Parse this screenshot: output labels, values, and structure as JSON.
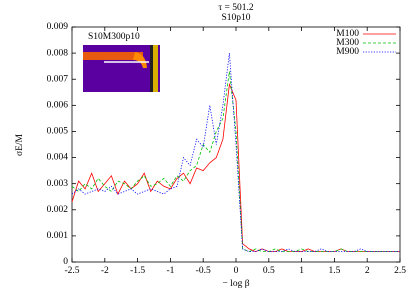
{
  "chart_data": {
    "type": "line",
    "title": "τ = 501.2",
    "subtitle": "S10p10",
    "x_label": "− log β",
    "y_label": "σE/M",
    "inset_title": "S10M300p10",
    "legend": "top-right",
    "x": [
      -2.5,
      -2.4,
      -2.3,
      -2.2,
      -2.1,
      -2.0,
      -1.9,
      -1.8,
      -1.7,
      -1.6,
      -1.5,
      -1.4,
      -1.3,
      -1.2,
      -1.1,
      -1.0,
      -0.9,
      -0.8,
      -0.7,
      -0.6,
      -0.5,
      -0.4,
      -0.3,
      -0.2,
      -0.1,
      0.0,
      0.1,
      0.2,
      0.3,
      0.4,
      0.5,
      0.6,
      0.7,
      0.8,
      0.9,
      1.0,
      1.1,
      1.2,
      1.3,
      1.4,
      1.5,
      1.6,
      1.7,
      1.8,
      1.9,
      2.0,
      2.1,
      2.2,
      2.3,
      2.4,
      2.5
    ],
    "series": [
      {
        "name": "M100",
        "color": "#ff0000",
        "dash": "solid",
        "values": [
          0.0023,
          0.0031,
          0.0028,
          0.0034,
          0.0027,
          0.003,
          0.0033,
          0.0026,
          0.0031,
          0.0028,
          0.003,
          0.0034,
          0.0027,
          0.0031,
          0.0029,
          0.0028,
          0.0032,
          0.0034,
          0.003,
          0.0036,
          0.0035,
          0.0038,
          0.004,
          0.0047,
          0.0068,
          0.0062,
          0.0007,
          0.0005,
          0.0004,
          0.0005,
          0.0004,
          0.0004,
          0.0005,
          0.0004,
          0.0004,
          0.0004,
          0.0005,
          0.0004,
          0.0004,
          0.0004,
          0.0004,
          0.0005,
          0.0004,
          0.0004,
          0.0004,
          0.0004,
          0.0004,
          0.0004,
          0.0004,
          0.0004,
          0.0004
        ]
      },
      {
        "name": "M300",
        "color": "#00c000",
        "dash": "dashed",
        "values": [
          0.0029,
          0.0027,
          0.003,
          0.0028,
          0.0032,
          0.0029,
          0.0027,
          0.0031,
          0.003,
          0.0028,
          0.0031,
          0.0033,
          0.0029,
          0.003,
          0.0032,
          0.0029,
          0.0033,
          0.0031,
          0.0035,
          0.0037,
          0.0045,
          0.0042,
          0.005,
          0.0055,
          0.0073,
          0.005,
          0.0005,
          0.0004,
          0.0005,
          0.0004,
          0.0004,
          0.0005,
          0.0004,
          0.0004,
          0.0004,
          0.0005,
          0.0004,
          0.0004,
          0.0004,
          0.0004,
          0.0004,
          0.0005,
          0.0004,
          0.0004,
          0.0004,
          0.0004,
          0.0004,
          0.0004,
          0.0004,
          0.0004,
          0.0004
        ]
      },
      {
        "name": "M900",
        "color": "#0000ff",
        "dash": "dotted",
        "values": [
          0.0026,
          0.0028,
          0.0026,
          0.0027,
          0.0028,
          0.0027,
          0.0029,
          0.0026,
          0.0027,
          0.0028,
          0.0026,
          0.0027,
          0.0028,
          0.0027,
          0.0026,
          0.0028,
          0.0029,
          0.004,
          0.0037,
          0.0047,
          0.0044,
          0.006,
          0.0045,
          0.006,
          0.008,
          0.0045,
          0.0005,
          0.0004,
          0.0004,
          0.0005,
          0.0004,
          0.0004,
          0.0004,
          0.0005,
          0.0004,
          0.0004,
          0.0004,
          0.0004,
          0.0005,
          0.0004,
          0.0004,
          0.0004,
          0.0004,
          0.0004,
          0.0005,
          0.0004,
          0.0004,
          0.0004,
          0.0004,
          0.0004,
          0.0004
        ]
      }
    ],
    "xlim": [
      -2.5,
      2.5
    ],
    "xticks": [
      -2.5,
      -2,
      -1.5,
      -1,
      -0.5,
      0,
      0.5,
      1,
      1.5,
      2,
      2.5
    ],
    "ylim": [
      0,
      0.009
    ],
    "yticks": [
      0,
      0.001,
      0.002,
      0.003,
      0.004,
      0.005,
      0.006,
      0.007,
      0.008,
      0.009
    ]
  }
}
